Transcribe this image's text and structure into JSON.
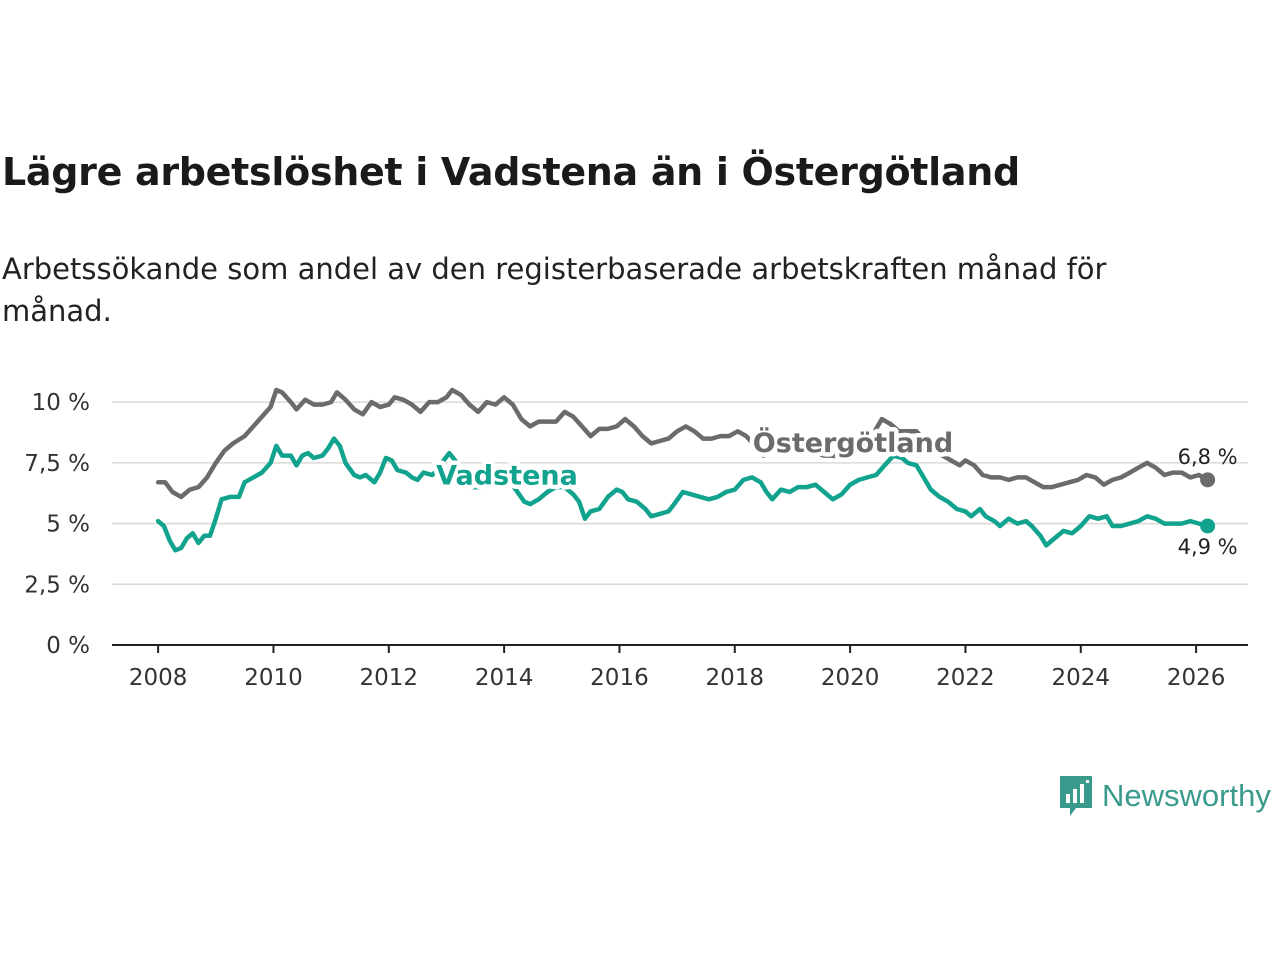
{
  "title": "Lägre arbetslöshet i Vadstena än i Östergötland",
  "subtitle": "Arbetssökande som andel av den registerbaserade arbetskraften månad för månad.",
  "brand": "Newsworthy",
  "colors": {
    "ostergotland": "#6b6b6d",
    "vadstena": "#12a38e",
    "grid": "#d9d9d9",
    "axis": "#222222"
  },
  "chart_data": {
    "type": "line",
    "title": "Lägre arbetslöshet i Vadstena än i Östergötland",
    "ylabel": "",
    "xlabel": "",
    "ylim": [
      0,
      10.5
    ],
    "xlim": [
      2007.2,
      2026.9
    ],
    "yticks": [
      0,
      2.5,
      5,
      7.5,
      10
    ],
    "ytick_labels": [
      "0 %",
      "2,5 %",
      "5 %",
      "7,5 %",
      "10 %"
    ],
    "xticks": [
      2008,
      2010,
      2012,
      2014,
      2016,
      2018,
      2020,
      2022,
      2024,
      2026
    ],
    "xtick_labels": [
      "2008",
      "2010",
      "2012",
      "2014",
      "2016",
      "2018",
      "2020",
      "2022",
      "2024",
      "2026"
    ],
    "series": [
      {
        "name": "Östergötland",
        "label": "Östergötland",
        "end_label": "6,8 %",
        "color_key": "ostergotland",
        "points": [
          [
            2008.0,
            6.7
          ],
          [
            2008.12,
            6.7
          ],
          [
            2008.25,
            6.3
          ],
          [
            2008.4,
            6.1
          ],
          [
            2008.55,
            6.4
          ],
          [
            2008.7,
            6.5
          ],
          [
            2008.85,
            6.9
          ],
          [
            2009.0,
            7.5
          ],
          [
            2009.15,
            8.0
          ],
          [
            2009.3,
            8.3
          ],
          [
            2009.5,
            8.6
          ],
          [
            2009.65,
            9.0
          ],
          [
            2009.8,
            9.4
          ],
          [
            2009.95,
            9.8
          ],
          [
            2010.05,
            10.5
          ],
          [
            2010.15,
            10.4
          ],
          [
            2010.3,
            10.0
          ],
          [
            2010.4,
            9.7
          ],
          [
            2010.55,
            10.1
          ],
          [
            2010.7,
            9.9
          ],
          [
            2010.85,
            9.9
          ],
          [
            2011.0,
            10.0
          ],
          [
            2011.1,
            10.4
          ],
          [
            2011.25,
            10.1
          ],
          [
            2011.4,
            9.7
          ],
          [
            2011.55,
            9.5
          ],
          [
            2011.7,
            10.0
          ],
          [
            2011.85,
            9.8
          ],
          [
            2012.0,
            9.9
          ],
          [
            2012.1,
            10.2
          ],
          [
            2012.25,
            10.1
          ],
          [
            2012.4,
            9.9
          ],
          [
            2012.55,
            9.6
          ],
          [
            2012.7,
            10.0
          ],
          [
            2012.85,
            10.0
          ],
          [
            2013.0,
            10.2
          ],
          [
            2013.1,
            10.5
          ],
          [
            2013.25,
            10.3
          ],
          [
            2013.4,
            9.9
          ],
          [
            2013.55,
            9.6
          ],
          [
            2013.7,
            10.0
          ],
          [
            2013.85,
            9.9
          ],
          [
            2014.0,
            10.2
          ],
          [
            2014.15,
            9.9
          ],
          [
            2014.3,
            9.3
          ],
          [
            2014.45,
            9.0
          ],
          [
            2014.6,
            9.2
          ],
          [
            2014.75,
            9.2
          ],
          [
            2014.9,
            9.2
          ],
          [
            2015.05,
            9.6
          ],
          [
            2015.2,
            9.4
          ],
          [
            2015.35,
            9.0
          ],
          [
            2015.5,
            8.6
          ],
          [
            2015.65,
            8.9
          ],
          [
            2015.8,
            8.9
          ],
          [
            2015.95,
            9.0
          ],
          [
            2016.1,
            9.3
          ],
          [
            2016.25,
            9.0
          ],
          [
            2016.4,
            8.6
          ],
          [
            2016.55,
            8.3
          ],
          [
            2016.7,
            8.4
          ],
          [
            2016.85,
            8.5
          ],
          [
            2017.0,
            8.8
          ],
          [
            2017.15,
            9.0
          ],
          [
            2017.3,
            8.8
          ],
          [
            2017.45,
            8.5
          ],
          [
            2017.6,
            8.5
          ],
          [
            2017.75,
            8.6
          ],
          [
            2017.9,
            8.6
          ],
          [
            2018.05,
            8.8
          ],
          [
            2018.2,
            8.6
          ],
          [
            2018.35,
            8.2
          ],
          [
            2018.5,
            7.8
          ],
          [
            2018.65,
            8.0
          ],
          [
            2018.8,
            8.1
          ],
          [
            2018.95,
            8.2
          ],
          [
            2019.1,
            8.3
          ],
          [
            2019.25,
            8.1
          ],
          [
            2019.4,
            7.9
          ],
          [
            2019.55,
            7.8
          ],
          [
            2019.7,
            7.8
          ],
          [
            2019.85,
            7.7
          ],
          [
            2020.0,
            8.0
          ],
          [
            2020.15,
            8.1
          ],
          [
            2020.3,
            8.3
          ],
          [
            2020.45,
            8.9
          ],
          [
            2020.55,
            9.3
          ],
          [
            2020.7,
            9.1
          ],
          [
            2020.85,
            8.8
          ],
          [
            2021.0,
            8.8
          ],
          [
            2021.15,
            8.8
          ],
          [
            2021.3,
            8.4
          ],
          [
            2021.45,
            8.0
          ],
          [
            2021.6,
            7.8
          ],
          [
            2021.75,
            7.6
          ],
          [
            2021.9,
            7.4
          ],
          [
            2022.0,
            7.6
          ],
          [
            2022.15,
            7.4
          ],
          [
            2022.3,
            7.0
          ],
          [
            2022.45,
            6.9
          ],
          [
            2022.6,
            6.9
          ],
          [
            2022.75,
            6.8
          ],
          [
            2022.9,
            6.9
          ],
          [
            2023.05,
            6.9
          ],
          [
            2023.2,
            6.7
          ],
          [
            2023.35,
            6.5
          ],
          [
            2023.5,
            6.5
          ],
          [
            2023.65,
            6.6
          ],
          [
            2023.8,
            6.7
          ],
          [
            2023.95,
            6.8
          ],
          [
            2024.1,
            7.0
          ],
          [
            2024.25,
            6.9
          ],
          [
            2024.4,
            6.6
          ],
          [
            2024.55,
            6.8
          ],
          [
            2024.7,
            6.9
          ],
          [
            2024.85,
            7.1
          ],
          [
            2025.0,
            7.3
          ],
          [
            2025.15,
            7.5
          ],
          [
            2025.3,
            7.3
          ],
          [
            2025.45,
            7.0
          ],
          [
            2025.6,
            7.1
          ],
          [
            2025.75,
            7.1
          ],
          [
            2025.9,
            6.9
          ],
          [
            2026.05,
            7.0
          ],
          [
            2026.2,
            6.8
          ]
        ]
      },
      {
        "name": "Vadstena",
        "label": "Vadstena",
        "end_label": "4,9 %",
        "color_key": "vadstena",
        "points": [
          [
            2008.0,
            5.1
          ],
          [
            2008.1,
            4.9
          ],
          [
            2008.2,
            4.3
          ],
          [
            2008.3,
            3.9
          ],
          [
            2008.4,
            4.0
          ],
          [
            2008.5,
            4.4
          ],
          [
            2008.6,
            4.6
          ],
          [
            2008.7,
            4.2
          ],
          [
            2008.8,
            4.5
          ],
          [
            2008.9,
            4.5
          ],
          [
            2009.0,
            5.2
          ],
          [
            2009.1,
            6.0
          ],
          [
            2009.25,
            6.1
          ],
          [
            2009.4,
            6.1
          ],
          [
            2009.5,
            6.7
          ],
          [
            2009.65,
            6.9
          ],
          [
            2009.8,
            7.1
          ],
          [
            2009.95,
            7.5
          ],
          [
            2010.05,
            8.2
          ],
          [
            2010.15,
            7.8
          ],
          [
            2010.3,
            7.8
          ],
          [
            2010.4,
            7.4
          ],
          [
            2010.5,
            7.8
          ],
          [
            2010.6,
            7.9
          ],
          [
            2010.7,
            7.7
          ],
          [
            2010.85,
            7.8
          ],
          [
            2010.95,
            8.1
          ],
          [
            2011.05,
            8.5
          ],
          [
            2011.15,
            8.2
          ],
          [
            2011.25,
            7.5
          ],
          [
            2011.4,
            7.0
          ],
          [
            2011.5,
            6.9
          ],
          [
            2011.6,
            7.0
          ],
          [
            2011.75,
            6.7
          ],
          [
            2011.85,
            7.1
          ],
          [
            2011.95,
            7.7
          ],
          [
            2012.05,
            7.6
          ],
          [
            2012.15,
            7.2
          ],
          [
            2012.3,
            7.1
          ],
          [
            2012.4,
            6.9
          ],
          [
            2012.5,
            6.8
          ],
          [
            2012.6,
            7.1
          ],
          [
            2012.75,
            7.0
          ],
          [
            2012.85,
            7.2
          ],
          [
            2012.95,
            7.6
          ],
          [
            2013.05,
            7.9
          ],
          [
            2013.15,
            7.6
          ],
          [
            2013.3,
            6.9
          ],
          [
            2013.45,
            6.5
          ],
          [
            2013.6,
            6.5
          ],
          [
            2013.75,
            6.8
          ],
          [
            2013.9,
            6.6
          ],
          [
            2014.05,
            6.9
          ],
          [
            2014.2,
            6.4
          ],
          [
            2014.35,
            5.9
          ],
          [
            2014.45,
            5.8
          ],
          [
            2014.6,
            6.0
          ],
          [
            2014.75,
            6.3
          ],
          [
            2014.9,
            6.5
          ],
          [
            2015.05,
            6.5
          ],
          [
            2015.2,
            6.2
          ],
          [
            2015.3,
            5.9
          ],
          [
            2015.4,
            5.2
          ],
          [
            2015.5,
            5.5
          ],
          [
            2015.65,
            5.6
          ],
          [
            2015.8,
            6.1
          ],
          [
            2015.95,
            6.4
          ],
          [
            2016.05,
            6.3
          ],
          [
            2016.15,
            6.0
          ],
          [
            2016.3,
            5.9
          ],
          [
            2016.45,
            5.6
          ],
          [
            2016.55,
            5.3
          ],
          [
            2016.7,
            5.4
          ],
          [
            2016.85,
            5.5
          ],
          [
            2016.95,
            5.8
          ],
          [
            2017.1,
            6.3
          ],
          [
            2017.25,
            6.2
          ],
          [
            2017.4,
            6.1
          ],
          [
            2017.55,
            6.0
          ],
          [
            2017.7,
            6.1
          ],
          [
            2017.85,
            6.3
          ],
          [
            2018.0,
            6.4
          ],
          [
            2018.15,
            6.8
          ],
          [
            2018.3,
            6.9
          ],
          [
            2018.45,
            6.7
          ],
          [
            2018.55,
            6.3
          ],
          [
            2018.65,
            6.0
          ],
          [
            2018.8,
            6.4
          ],
          [
            2018.95,
            6.3
          ],
          [
            2019.1,
            6.5
          ],
          [
            2019.25,
            6.5
          ],
          [
            2019.4,
            6.6
          ],
          [
            2019.55,
            6.3
          ],
          [
            2019.7,
            6.0
          ],
          [
            2019.85,
            6.2
          ],
          [
            2020.0,
            6.6
          ],
          [
            2020.15,
            6.8
          ],
          [
            2020.3,
            6.9
          ],
          [
            2020.45,
            7.0
          ],
          [
            2020.6,
            7.4
          ],
          [
            2020.75,
            7.8
          ],
          [
            2020.9,
            7.7
          ],
          [
            2021.0,
            7.5
          ],
          [
            2021.15,
            7.4
          ],
          [
            2021.25,
            7.0
          ],
          [
            2021.4,
            6.4
          ],
          [
            2021.55,
            6.1
          ],
          [
            2021.7,
            5.9
          ],
          [
            2021.85,
            5.6
          ],
          [
            2022.0,
            5.5
          ],
          [
            2022.1,
            5.3
          ],
          [
            2022.25,
            5.6
          ],
          [
            2022.35,
            5.3
          ],
          [
            2022.5,
            5.1
          ],
          [
            2022.6,
            4.9
          ],
          [
            2022.75,
            5.2
          ],
          [
            2022.9,
            5.0
          ],
          [
            2023.05,
            5.1
          ],
          [
            2023.15,
            4.9
          ],
          [
            2023.3,
            4.5
          ],
          [
            2023.4,
            4.1
          ],
          [
            2023.55,
            4.4
          ],
          [
            2023.7,
            4.7
          ],
          [
            2023.85,
            4.6
          ],
          [
            2024.0,
            4.9
          ],
          [
            2024.15,
            5.3
          ],
          [
            2024.3,
            5.2
          ],
          [
            2024.45,
            5.3
          ],
          [
            2024.55,
            4.9
          ],
          [
            2024.7,
            4.9
          ],
          [
            2024.85,
            5.0
          ],
          [
            2025.0,
            5.1
          ],
          [
            2025.15,
            5.3
          ],
          [
            2025.3,
            5.2
          ],
          [
            2025.45,
            5.0
          ],
          [
            2025.6,
            5.0
          ],
          [
            2025.75,
            5.0
          ],
          [
            2025.9,
            5.1
          ],
          [
            2026.05,
            5.0
          ],
          [
            2026.2,
            4.9
          ]
        ]
      }
    ]
  }
}
